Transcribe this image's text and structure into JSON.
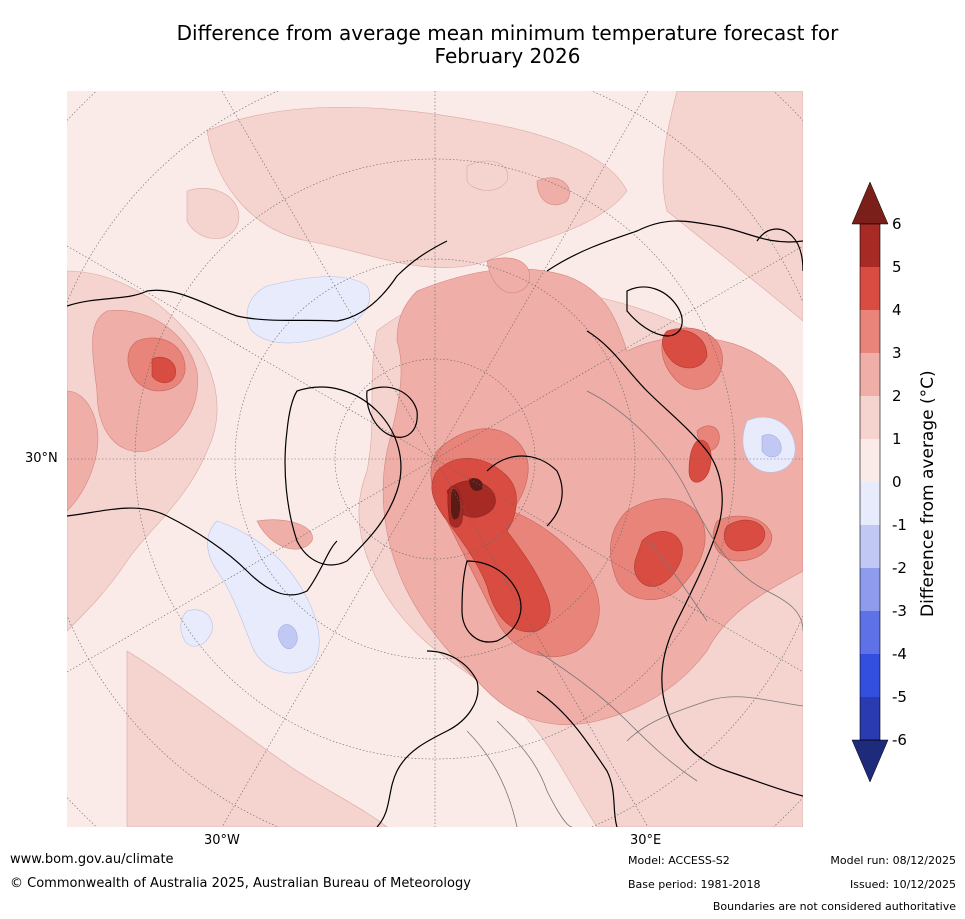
{
  "title_line1": "Difference from average mean minimum temperature forecast for",
  "title_line2": "February 2026",
  "map": {
    "lat_label": "30°N",
    "lon_label_left": "30°W",
    "lon_label_right": "30°E"
  },
  "colorbar": {
    "label": "Difference from average (°C)",
    "ticks": [
      "6",
      "5",
      "4",
      "3",
      "2",
      "1",
      "0",
      "-1",
      "-2",
      "-3",
      "-4",
      "-5",
      "-6"
    ],
    "over_color": "#7a1f1a",
    "under_color": "#1e2a7a",
    "bands": [
      {
        "range": "5 to 6",
        "color": "#a72a25"
      },
      {
        "range": "4 to 5",
        "color": "#d94c41"
      },
      {
        "range": "3 to 4",
        "color": "#e8847a"
      },
      {
        "range": "2 to 3",
        "color": "#efaea7"
      },
      {
        "range": "1 to 2",
        "color": "#f5d3cf"
      },
      {
        "range": "0 to 1",
        "color": "#fbebe8"
      },
      {
        "range": "-1 to 0",
        "color": "#e7ebfb"
      },
      {
        "range": "-2 to -1",
        "color": "#c1c8f3"
      },
      {
        "range": "-3 to -2",
        "color": "#8f9bed"
      },
      {
        "range": "-4 to -3",
        "color": "#5e71e6"
      },
      {
        "range": "-5 to -4",
        "color": "#334fe0"
      },
      {
        "range": "-6 to -5",
        "color": "#2a3ab0"
      }
    ]
  },
  "footer": {
    "website": "www.bom.gov.au/climate",
    "copyright": "© Commonwealth of Australia 2025, Australian Bureau of Meteorology",
    "model": "Model: ACCESS-S2",
    "base_period": "Base period: 1981-2018",
    "model_run": "Model run: 08/12/2025",
    "issued": "Issued: 10/12/2025",
    "disclaimer": "Boundaries are not considered authoritative"
  }
}
